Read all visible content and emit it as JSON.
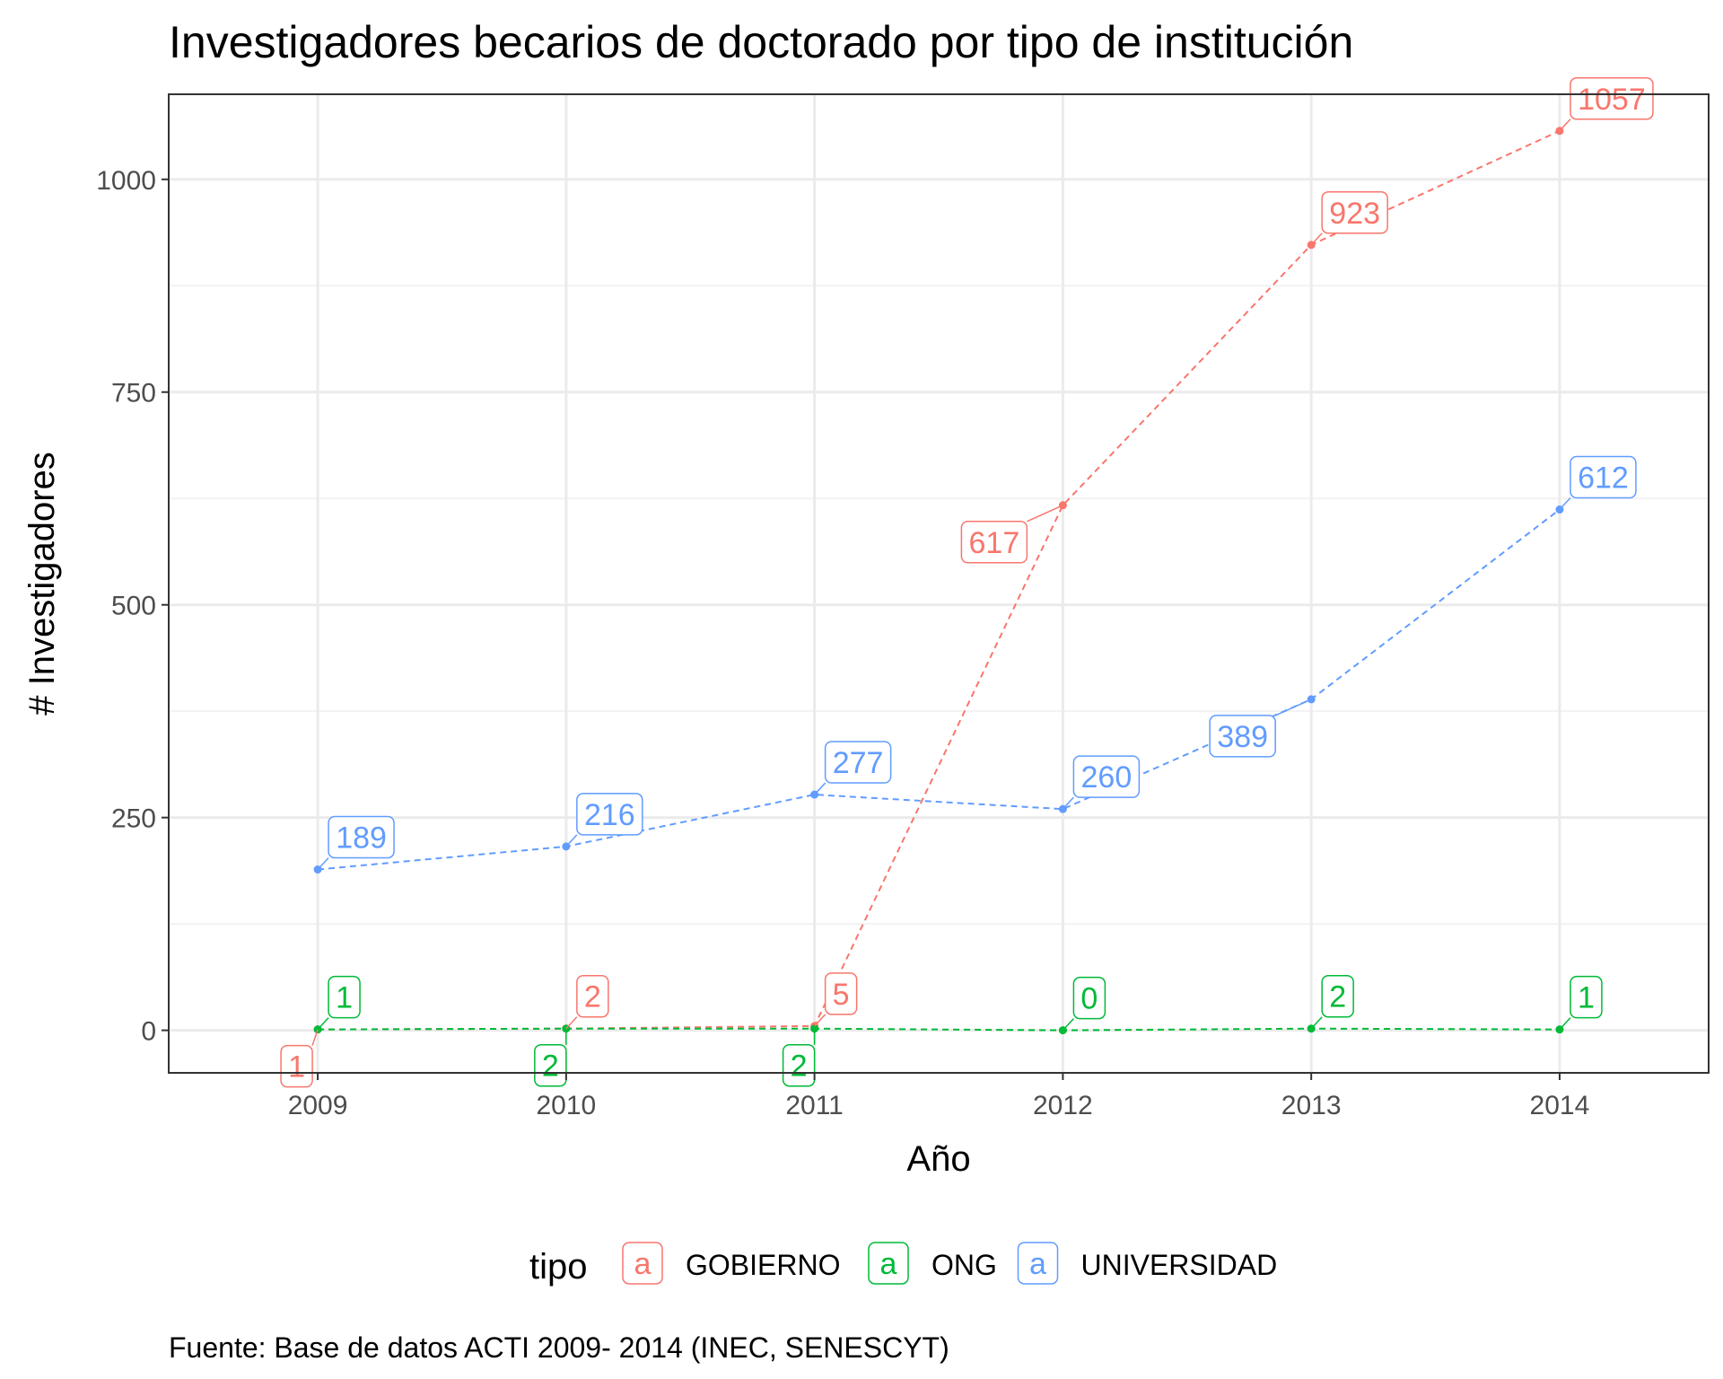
{
  "chart_data": {
    "type": "line",
    "title": "Investigadores becarios de doctorado por tipo de institución",
    "xlabel": "Año",
    "ylabel": "# Investigadores",
    "x": [
      2009,
      2010,
      2011,
      2012,
      2013,
      2014
    ],
    "x_ticks": [
      "2009",
      "2010",
      "2011",
      "2012",
      "2013",
      "2014"
    ],
    "y_ticks": [
      "0",
      "250",
      "500",
      "750",
      "1000"
    ],
    "ylim": [
      -50,
      1100
    ],
    "xlim": [
      2008.4,
      2014.6
    ],
    "grid": true,
    "line_style": "dashed",
    "legend": {
      "title": "tipo",
      "key_glyph": "a",
      "position": "bottom"
    },
    "series": [
      {
        "name": "GOBIERNO",
        "color": "#F8766D",
        "values": [
          1,
          2,
          5,
          617,
          923,
          1057
        ],
        "labels": [
          "1",
          "2",
          "5",
          "617",
          "923",
          "1057"
        ]
      },
      {
        "name": "ONG",
        "color": "#00BA38",
        "values": [
          1,
          2,
          2,
          0,
          2,
          1
        ],
        "labels": [
          "1",
          "2",
          "2",
          "0",
          "2",
          "1"
        ]
      },
      {
        "name": "UNIVERSIDAD",
        "color": "#619CFF",
        "values": [
          189,
          216,
          277,
          260,
          389,
          612
        ],
        "labels": [
          "189",
          "216",
          "277",
          "260",
          "389",
          "612"
        ]
      }
    ],
    "caption": "Fuente: Base de datos ACTI 2009- 2014 (INEC, SENESCYT)"
  }
}
